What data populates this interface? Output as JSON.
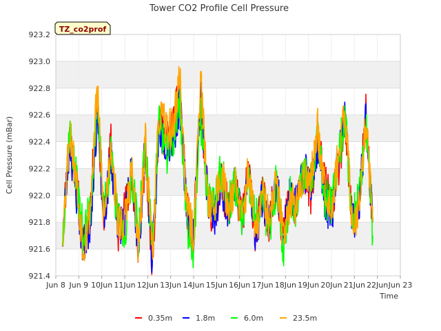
{
  "chart_data": {
    "type": "line",
    "title": "Tower CO2 Profile Cell Pressure",
    "ylabel": "Cell Pressure (mBar)",
    "xlabel": "Time",
    "badge": "TZ_co2prof",
    "ylim": [
      921.4,
      923.2
    ],
    "xlim": [
      8,
      23
    ],
    "yticks": [
      {
        "v": 921.4,
        "label": "921.4"
      },
      {
        "v": 921.6,
        "label": "921.6"
      },
      {
        "v": 921.8,
        "label": "921.8"
      },
      {
        "v": 922.0,
        "label": "922.0"
      },
      {
        "v": 922.2,
        "label": "922.2"
      },
      {
        "v": 922.4,
        "label": "922.4"
      },
      {
        "v": 922.6,
        "label": "922.6"
      },
      {
        "v": 922.8,
        "label": "922.8"
      },
      {
        "v": 923.0,
        "label": "923.0"
      },
      {
        "v": 923.2,
        "label": "923.2"
      }
    ],
    "xticks": [
      {
        "v": 8,
        "label": "Jun 8"
      },
      {
        "v": 9,
        "label": "Jun 9"
      },
      {
        "v": 10,
        "label": "10Jun"
      },
      {
        "v": 11,
        "label": "11Jun"
      },
      {
        "v": 12,
        "label": "12Jun"
      },
      {
        "v": 13,
        "label": "13Jun"
      },
      {
        "v": 14,
        "label": "14Jun"
      },
      {
        "v": 15,
        "label": "15Jun"
      },
      {
        "v": 16,
        "label": "16Jun"
      },
      {
        "v": 17,
        "label": "17Jun"
      },
      {
        "v": 18,
        "label": "18Jun"
      },
      {
        "v": 19,
        "label": "19Jun"
      },
      {
        "v": 20,
        "label": "20Jun"
      },
      {
        "v": 21,
        "label": "21Jun"
      },
      {
        "v": 22,
        "label": "22Jun"
      },
      {
        "v": 23,
        "label": "Jun 23"
      }
    ],
    "grid": true,
    "legend_position": "bottom",
    "series": [
      {
        "name": "0.35m",
        "color": "#ff0000",
        "seed": 11,
        "x": [
          8.3,
          8.6,
          8.9,
          9.2,
          9.5,
          9.8,
          10.1,
          10.4,
          10.7,
          11.0,
          11.3,
          11.6,
          11.9,
          12.2,
          12.5,
          12.8,
          13.1,
          13.4,
          13.7,
          14.0,
          14.3,
          14.6,
          14.9,
          15.2,
          15.5,
          15.8,
          16.1,
          16.4,
          16.7,
          17.0,
          17.3,
          17.6,
          17.9,
          18.2,
          18.5,
          18.8,
          19.1,
          19.4,
          19.7,
          20.0,
          20.3,
          20.6,
          20.9,
          21.2,
          21.5,
          21.8
        ],
        "y": [
          921.7,
          922.5,
          922.1,
          921.6,
          921.9,
          922.7,
          921.8,
          922.4,
          921.7,
          921.9,
          922.1,
          921.6,
          922.3,
          921.5,
          922.6,
          922.4,
          922.5,
          922.8,
          921.9,
          921.7,
          922.7,
          922.0,
          921.8,
          922.1,
          921.9,
          922.1,
          921.8,
          922.2,
          921.7,
          922.0,
          921.8,
          922.1,
          921.7,
          922.0,
          921.9,
          922.2,
          922.0,
          922.4,
          922.1,
          921.9,
          922.2,
          922.5,
          921.8,
          921.9,
          922.6,
          921.8
        ]
      },
      {
        "name": "1.8m",
        "color": "#0000ff",
        "seed": 23,
        "x": [
          8.3,
          8.6,
          8.9,
          9.2,
          9.5,
          9.8,
          10.1,
          10.4,
          10.7,
          11.0,
          11.3,
          11.6,
          11.9,
          12.2,
          12.5,
          12.8,
          13.1,
          13.4,
          13.7,
          14.0,
          14.3,
          14.6,
          14.9,
          15.2,
          15.5,
          15.8,
          16.1,
          16.4,
          16.7,
          17.0,
          17.3,
          17.6,
          17.9,
          18.2,
          18.5,
          18.8,
          19.1,
          19.4,
          19.7,
          20.0,
          20.3,
          20.6,
          20.9,
          21.2,
          21.5,
          21.8
        ],
        "y": [
          921.7,
          922.4,
          922.0,
          921.6,
          921.8,
          922.6,
          921.8,
          922.3,
          921.8,
          921.8,
          922.2,
          921.6,
          922.4,
          921.5,
          922.5,
          922.4,
          922.4,
          922.7,
          921.9,
          921.7,
          922.8,
          922.0,
          921.8,
          922.1,
          921.9,
          922.1,
          921.8,
          922.2,
          921.7,
          922.0,
          921.8,
          922.1,
          921.7,
          922.0,
          921.9,
          922.2,
          922.1,
          922.4,
          922.0,
          921.8,
          922.3,
          922.6,
          921.8,
          921.9,
          922.6,
          921.8
        ]
      },
      {
        "name": "6.0m",
        "color": "#00ff00",
        "seed": 37,
        "x": [
          8.3,
          8.6,
          8.9,
          9.2,
          9.5,
          9.8,
          10.1,
          10.4,
          10.7,
          11.0,
          11.3,
          11.6,
          11.9,
          12.2,
          12.5,
          12.8,
          13.1,
          13.4,
          13.7,
          14.0,
          14.3,
          14.6,
          14.9,
          15.2,
          15.5,
          15.8,
          16.1,
          16.4,
          16.7,
          17.0,
          17.3,
          17.6,
          17.9,
          18.2,
          18.5,
          18.8,
          19.1,
          19.4,
          19.7,
          20.0,
          20.3,
          20.6,
          20.9,
          21.2,
          21.5,
          21.8
        ],
        "y": [
          921.7,
          922.5,
          922.1,
          921.7,
          921.9,
          922.7,
          921.9,
          922.3,
          921.8,
          921.7,
          922.2,
          921.7,
          922.4,
          921.6,
          922.6,
          922.3,
          922.4,
          922.7,
          921.8,
          921.6,
          922.6,
          922.0,
          921.9,
          922.2,
          921.9,
          922.1,
          921.8,
          922.1,
          921.8,
          922.0,
          921.7,
          922.1,
          921.6,
          922.0,
          921.9,
          922.2,
          922.1,
          922.5,
          922.0,
          921.9,
          922.3,
          922.6,
          921.8,
          922.0,
          922.5,
          921.7
        ]
      },
      {
        "name": "23.5m",
        "color": "#ffa500",
        "seed": 53,
        "x": [
          8.3,
          8.6,
          8.9,
          9.2,
          9.5,
          9.8,
          10.1,
          10.4,
          10.7,
          11.0,
          11.3,
          11.6,
          11.9,
          12.2,
          12.5,
          12.8,
          13.1,
          13.4,
          13.7,
          14.0,
          14.3,
          14.6,
          14.9,
          15.2,
          15.5,
          15.8,
          16.1,
          16.4,
          16.7,
          17.0,
          17.3,
          17.6,
          17.9,
          18.2,
          18.5,
          18.8,
          19.1,
          19.4,
          19.7,
          20.0,
          20.3,
          20.6,
          20.9,
          21.2,
          21.5,
          21.8
        ],
        "y": [
          921.7,
          922.5,
          922.1,
          921.6,
          921.9,
          922.8,
          921.8,
          922.4,
          921.8,
          921.8,
          922.2,
          921.6,
          922.4,
          921.6,
          922.6,
          922.5,
          922.5,
          922.9,
          921.9,
          921.7,
          922.9,
          922.0,
          921.9,
          922.2,
          921.9,
          922.1,
          921.8,
          922.2,
          921.7,
          922.0,
          921.8,
          922.1,
          921.7,
          922.0,
          921.9,
          922.2,
          922.1,
          922.5,
          922.1,
          921.9,
          922.3,
          922.6,
          921.8,
          921.9,
          922.6,
          921.8
        ]
      }
    ]
  }
}
